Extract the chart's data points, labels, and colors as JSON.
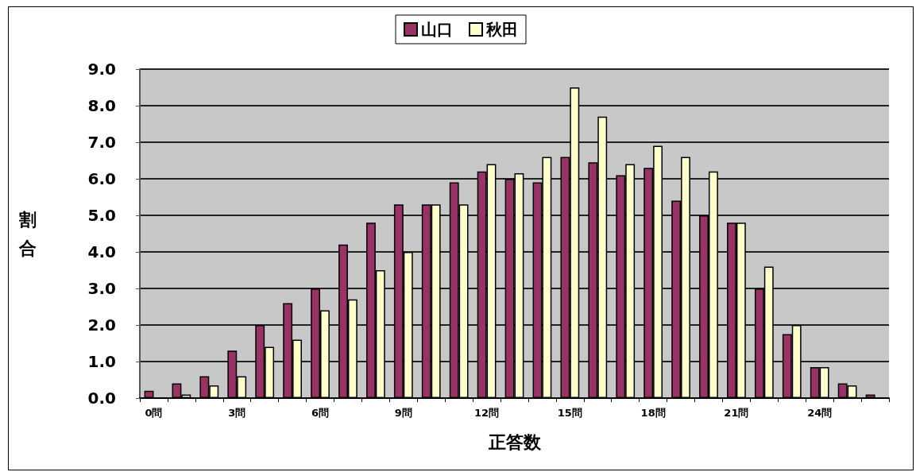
{
  "chart_data": {
    "type": "bar",
    "xlabel": "正答数",
    "ylabel": "割合",
    "categories": [
      "0問",
      null,
      null,
      "3問",
      null,
      null,
      "6問",
      null,
      null,
      "9問",
      null,
      null,
      "12問",
      null,
      null,
      "15問",
      null,
      null,
      "18問",
      null,
      null,
      "21問",
      null,
      null,
      "24問",
      null,
      null
    ],
    "series": [
      {
        "name": "山口",
        "color": "#993366",
        "values": [
          0.2,
          0.4,
          0.6,
          1.3,
          2.0,
          2.6,
          3.0,
          4.2,
          4.8,
          5.3,
          5.3,
          5.9,
          6.2,
          6.0,
          5.9,
          6.6,
          6.45,
          6.1,
          6.3,
          5.4,
          5.0,
          4.8,
          3.0,
          1.75,
          0.85,
          0.4,
          0.1
        ]
      },
      {
        "name": "秋田",
        "color": "#ffffcc",
        "values": [
          null,
          0.1,
          0.35,
          0.6,
          1.4,
          1.6,
          2.4,
          2.7,
          3.5,
          4.0,
          5.3,
          5.3,
          6.4,
          6.15,
          6.6,
          8.5,
          7.7,
          6.4,
          6.9,
          6.6,
          6.2,
          4.8,
          3.6,
          2.0,
          0.85,
          0.35,
          null
        ]
      }
    ],
    "ylim": [
      0,
      9
    ],
    "yticks": [
      {
        "value": 0,
        "label": "0.0"
      },
      {
        "value": 1,
        "label": "1.0"
      },
      {
        "value": 2,
        "label": "2.0"
      },
      {
        "value": 3,
        "label": "3.0"
      },
      {
        "value": 4,
        "label": "4.0"
      },
      {
        "value": 5,
        "label": "5.0"
      },
      {
        "value": 6,
        "label": "6.0"
      },
      {
        "value": 7,
        "label": "7.0"
      },
      {
        "value": 8,
        "label": "8.0"
      },
      {
        "value": 9,
        "label": "9.0"
      }
    ],
    "grid": "y",
    "legend": "top"
  }
}
